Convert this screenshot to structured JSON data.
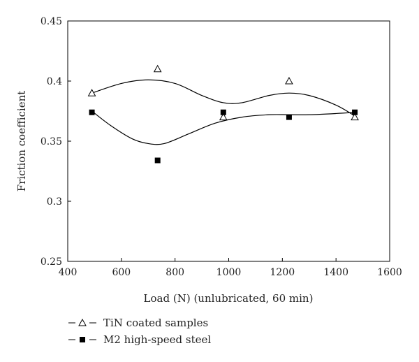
{
  "chart_data": {
    "type": "scatter",
    "xlabel": "Load (N) (unlubricated, 60 min)",
    "ylabel": "Friction coefficient",
    "xlim": [
      400,
      1600
    ],
    "ylim": [
      0.25,
      0.45
    ],
    "xticks": [
      400,
      600,
      800,
      1000,
      1200,
      1400,
      1600
    ],
    "yticks": [
      0.25,
      0.3,
      0.35,
      0.4,
      0.45
    ],
    "ytick_labels": [
      "0.25",
      "0.3",
      "0.35",
      "0.4",
      "0.45"
    ],
    "legend_position": "bottom-left",
    "grid": false,
    "series": [
      {
        "name": "TiN coated samples",
        "marker": "triangle-open",
        "color": "#000000",
        "x": [
          490,
          735,
          980,
          1225,
          1470
        ],
        "y": [
          0.39,
          0.41,
          0.37,
          0.4,
          0.37
        ],
        "fit_curve": [
          [
            490,
            0.39
          ],
          [
            600,
            0.398
          ],
          [
            700,
            0.401
          ],
          [
            800,
            0.398
          ],
          [
            900,
            0.388
          ],
          [
            980,
            0.382
          ],
          [
            1050,
            0.382
          ],
          [
            1150,
            0.388
          ],
          [
            1225,
            0.39
          ],
          [
            1300,
            0.388
          ],
          [
            1400,
            0.38
          ],
          [
            1470,
            0.371
          ]
        ]
      },
      {
        "name": "M2 high-speed steel",
        "marker": "square-filled",
        "color": "#000000",
        "x": [
          490,
          735,
          980,
          1225,
          1470
        ],
        "y": [
          0.374,
          0.334,
          0.374,
          0.37,
          0.374
        ],
        "fit_curve": [
          [
            490,
            0.375
          ],
          [
            560,
            0.363
          ],
          [
            640,
            0.352
          ],
          [
            700,
            0.348
          ],
          [
            760,
            0.348
          ],
          [
            850,
            0.356
          ],
          [
            950,
            0.365
          ],
          [
            1050,
            0.37
          ],
          [
            1150,
            0.372
          ],
          [
            1225,
            0.372
          ],
          [
            1300,
            0.372
          ],
          [
            1400,
            0.373
          ],
          [
            1470,
            0.374
          ]
        ]
      }
    ]
  }
}
